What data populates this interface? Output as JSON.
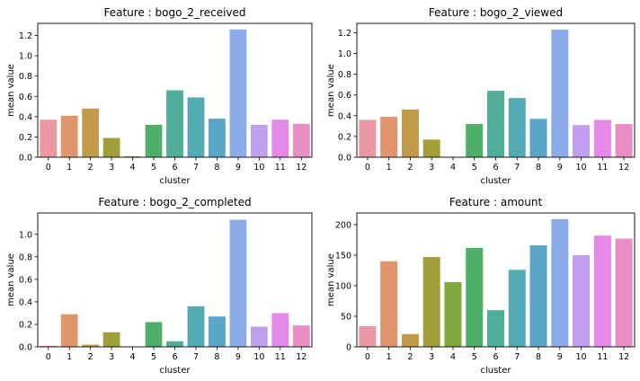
{
  "palette": [
    "#ea96a3",
    "#e0956c",
    "#c19b4a",
    "#a09f3a",
    "#7fa83e",
    "#4eb068",
    "#4fae98",
    "#52aab4",
    "#5aa6c8",
    "#8cabe9",
    "#c29ef1",
    "#e688e8",
    "#e98dc4"
  ],
  "chart_data": [
    {
      "type": "bar",
      "title": "Feature : bogo_2_received",
      "xlabel": "cluster",
      "ylabel": "mean value",
      "categories": [
        "0",
        "1",
        "2",
        "3",
        "4",
        "5",
        "6",
        "7",
        "8",
        "9",
        "10",
        "11",
        "12"
      ],
      "values": [
        0.37,
        0.41,
        0.48,
        0.19,
        0.01,
        0.32,
        0.66,
        0.59,
        0.38,
        1.26,
        0.32,
        0.37,
        0.33
      ],
      "ylim": [
        0,
        1.32
      ],
      "yticks": [
        0.0,
        0.2,
        0.4,
        0.6,
        0.8,
        1.0,
        1.2
      ],
      "ytick_labels": [
        "0.0",
        "0.2",
        "0.4",
        "0.6",
        "0.8",
        "1.0",
        "1.2"
      ],
      "grid": false
    },
    {
      "type": "bar",
      "title": "Feature : bogo_2_viewed",
      "xlabel": "cluster",
      "ylabel": "mean value",
      "categories": [
        "0",
        "1",
        "2",
        "3",
        "4",
        "5",
        "6",
        "7",
        "8",
        "9",
        "10",
        "11",
        "12"
      ],
      "values": [
        0.36,
        0.39,
        0.46,
        0.17,
        0.0,
        0.32,
        0.64,
        0.57,
        0.37,
        1.23,
        0.31,
        0.36,
        0.32
      ],
      "ylim": [
        0,
        1.29
      ],
      "yticks": [
        0.0,
        0.2,
        0.4,
        0.6,
        0.8,
        1.0,
        1.2
      ],
      "ytick_labels": [
        "0.0",
        "0.2",
        "0.4",
        "0.6",
        "0.8",
        "1.0",
        "1.2"
      ],
      "grid": false
    },
    {
      "type": "bar",
      "title": "Feature : bogo_2_completed",
      "xlabel": "cluster",
      "ylabel": "mean value",
      "categories": [
        "0",
        "1",
        "2",
        "3",
        "4",
        "5",
        "6",
        "7",
        "8",
        "9",
        "10",
        "11",
        "12"
      ],
      "values": [
        0.01,
        0.29,
        0.02,
        0.13,
        0.0,
        0.22,
        0.05,
        0.36,
        0.27,
        1.13,
        0.18,
        0.3,
        0.19
      ],
      "ylim": [
        0,
        1.19
      ],
      "yticks": [
        0.0,
        0.2,
        0.4,
        0.6,
        0.8,
        1.0
      ],
      "ytick_labels": [
        "0.0",
        "0.2",
        "0.4",
        "0.6",
        "0.8",
        "1.0"
      ],
      "grid": false
    },
    {
      "type": "bar",
      "title": "Feature : amount",
      "xlabel": "cluster",
      "ylabel": "mean value",
      "categories": [
        "0",
        "1",
        "2",
        "3",
        "4",
        "5",
        "6",
        "7",
        "8",
        "9",
        "10",
        "11",
        "12"
      ],
      "values": [
        34,
        140,
        21,
        147,
        106,
        162,
        60,
        126,
        166,
        209,
        150,
        182,
        177
      ],
      "ylim": [
        0,
        219
      ],
      "yticks": [
        0,
        50,
        100,
        150,
        200
      ],
      "ytick_labels": [
        "0",
        "50",
        "100",
        "150",
        "200"
      ],
      "grid": false
    }
  ]
}
